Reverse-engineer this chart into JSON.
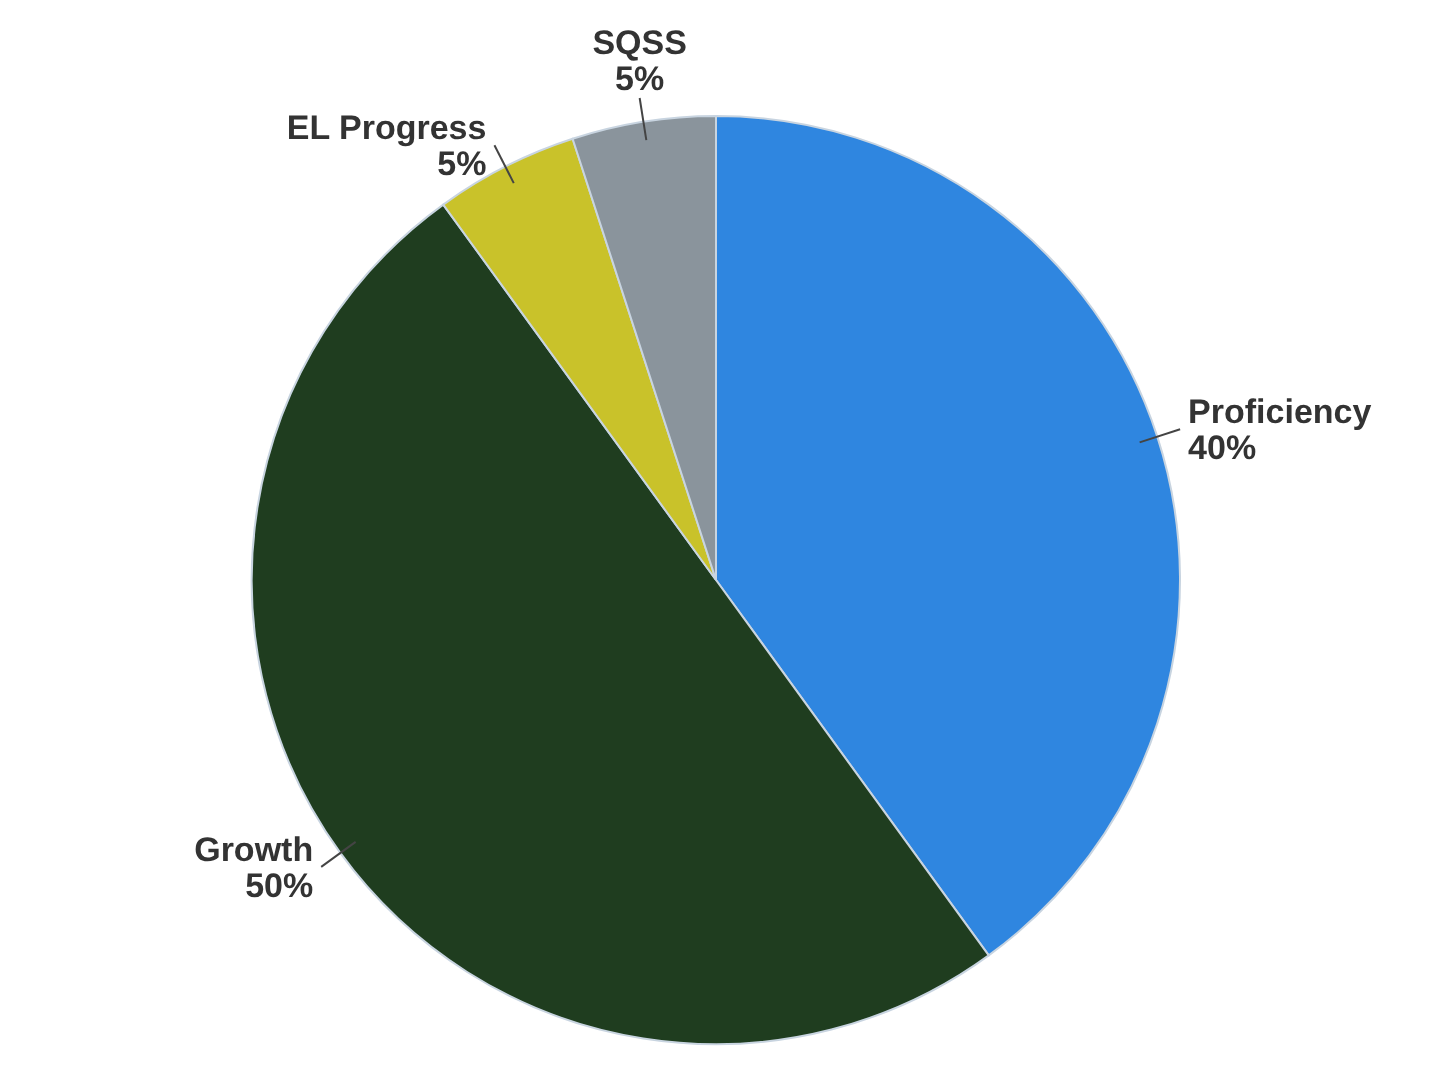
{
  "chart_data": {
    "type": "pie",
    "categories": [
      "Proficiency",
      "Growth",
      "EL Progress",
      "SQSS"
    ],
    "values": [
      40,
      50,
      5,
      5
    ],
    "colors": [
      "#2f86e0",
      "#1f3d1f",
      "#c9c22a",
      "#8a949c"
    ],
    "value_labels": [
      "40%",
      "50%",
      "5%",
      "5%"
    ]
  }
}
